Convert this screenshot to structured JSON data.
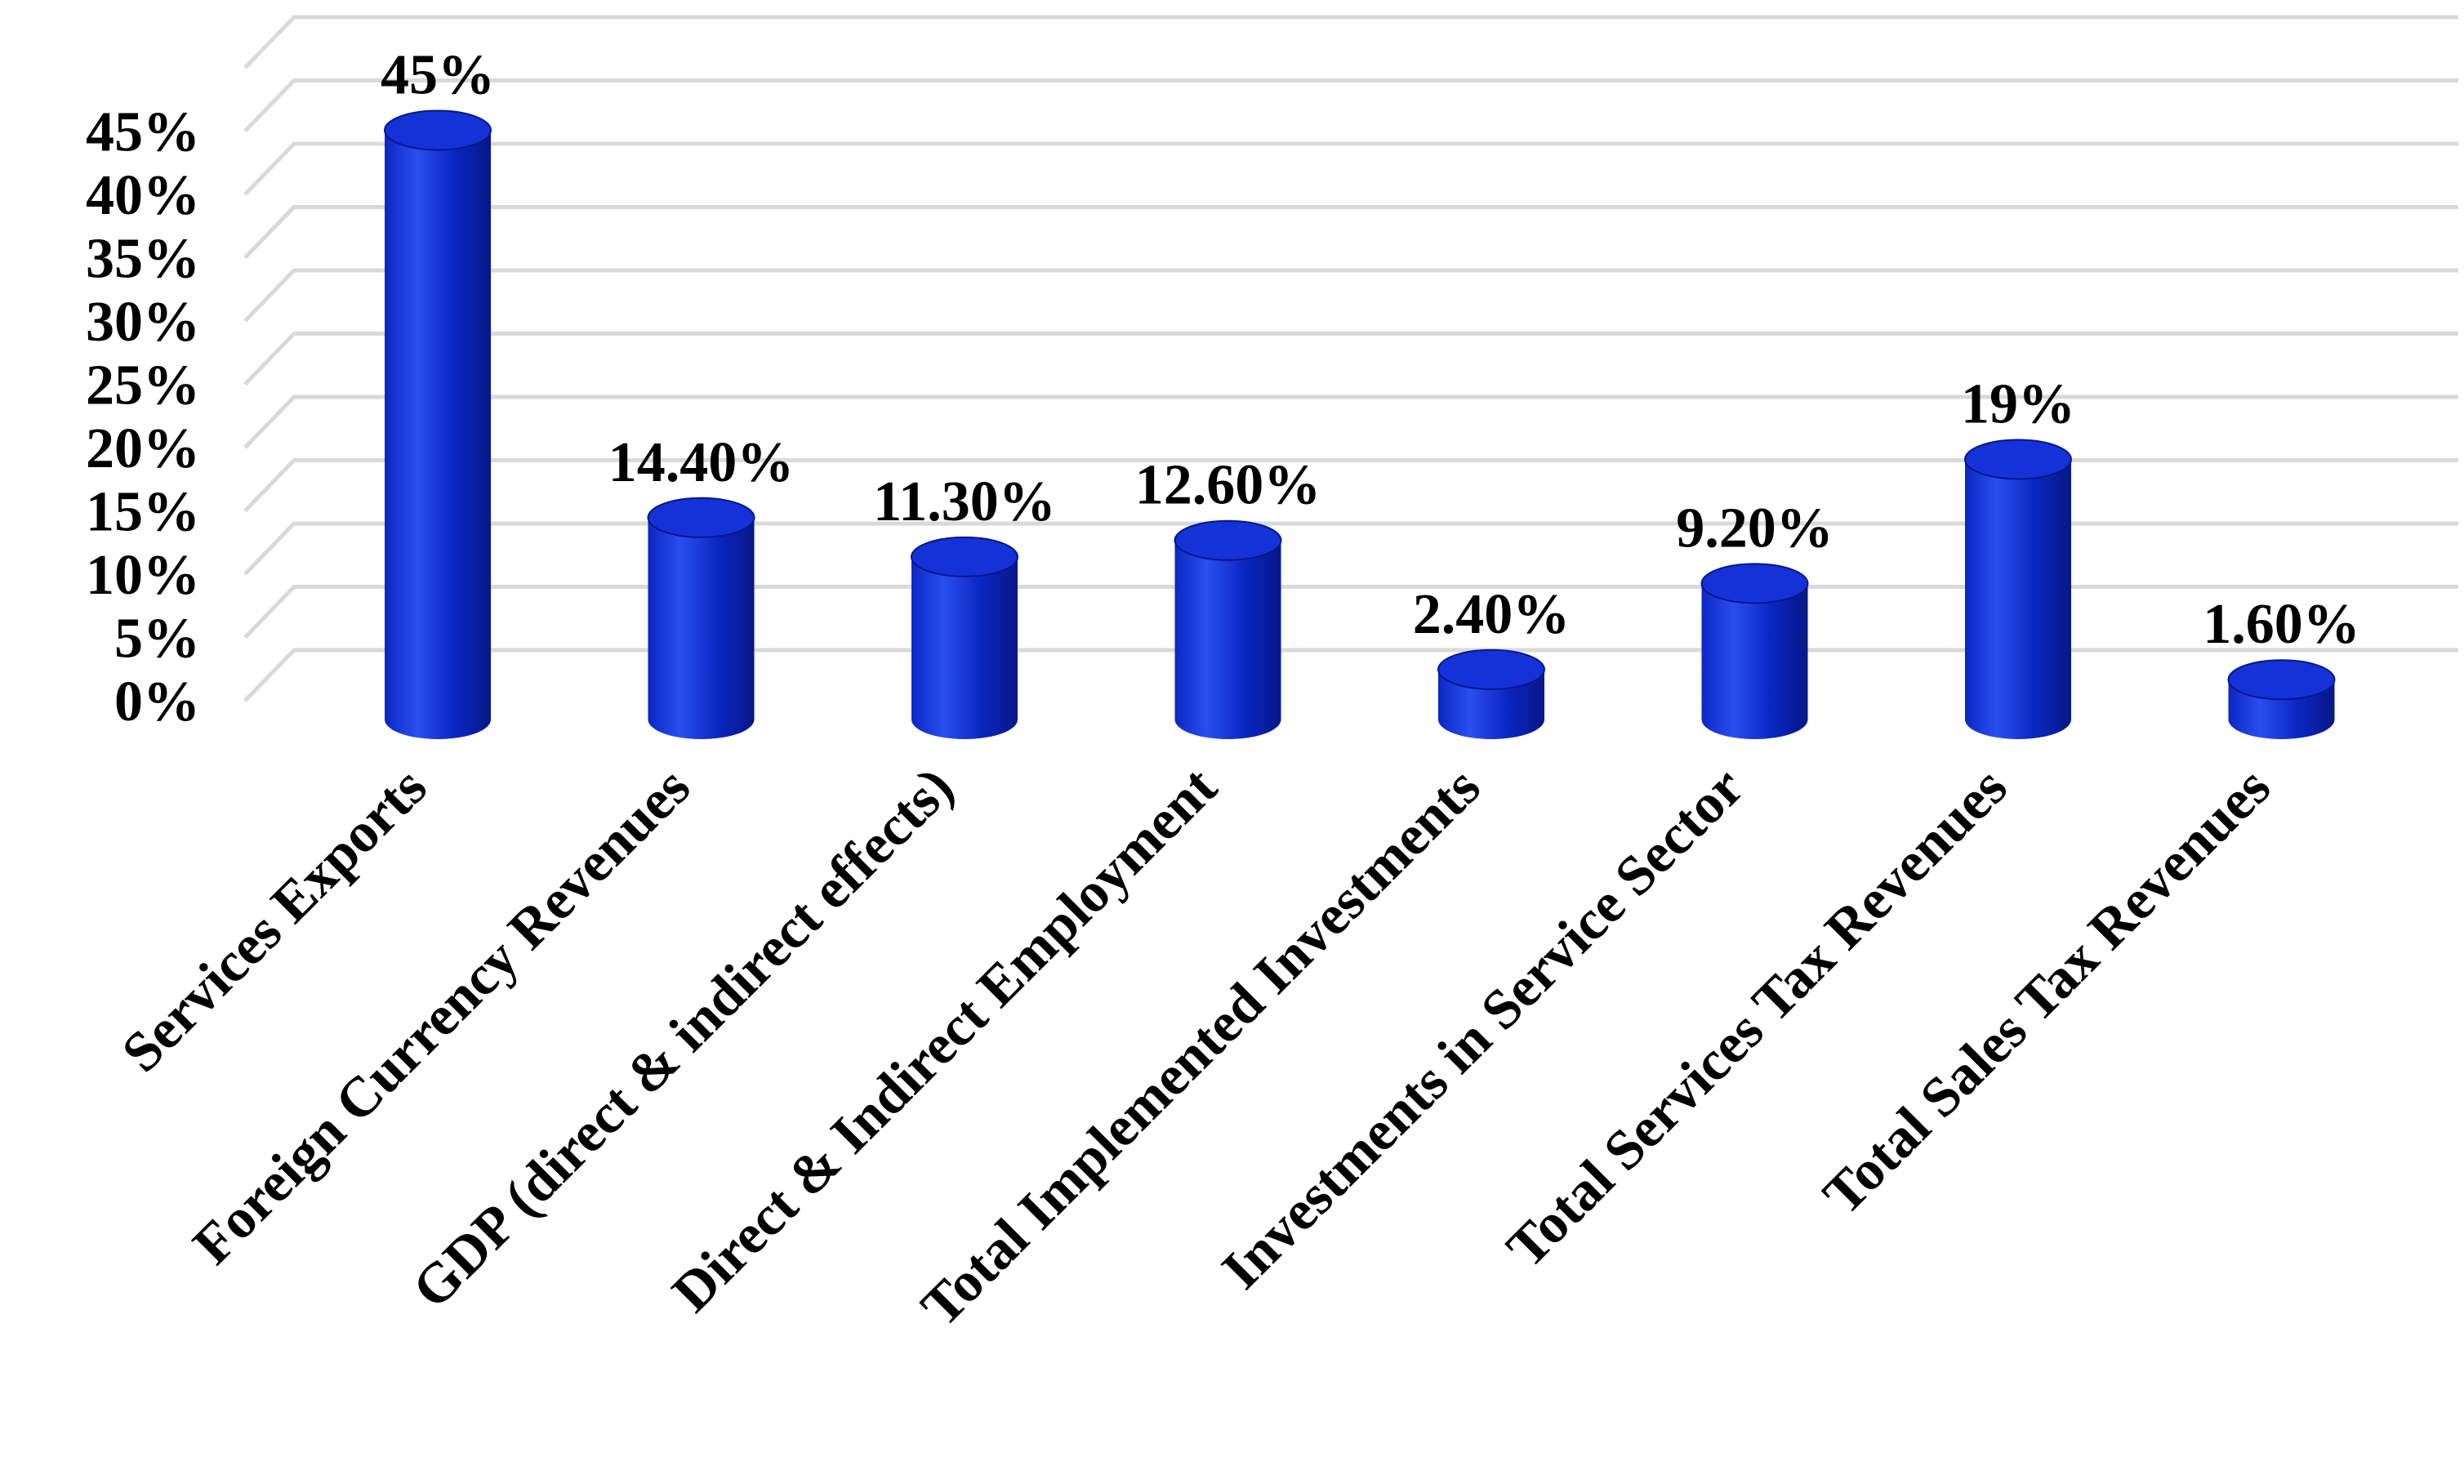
{
  "chart_data": {
    "type": "bar",
    "style": "3d-cylinder",
    "categories": [
      "Services Exports",
      "Foreign Currency Revenues",
      "GDP (direct & indirect effects)",
      "Direct & Indirect Employment",
      "Total Implemented Investments",
      "Investments in Service Sector",
      "Total Services Tax Revenues",
      "Total Sales Tax Revenues"
    ],
    "values": [
      45,
      14.4,
      11.3,
      12.6,
      2.4,
      9.2,
      19,
      1.6
    ],
    "data_labels": [
      "45%",
      "14.40%",
      "11.30%",
      "12.60%",
      "2.40%",
      "9.20%",
      "19%",
      "1.60%"
    ],
    "y_ticks": [
      0,
      5,
      10,
      15,
      20,
      25,
      30,
      35,
      40,
      45
    ],
    "y_tick_labels": [
      "0%",
      "5%",
      "10%",
      "15%",
      "20%",
      "25%",
      "30%",
      "35%",
      "40%",
      "45%"
    ],
    "ylim": [
      0,
      50
    ],
    "title": "",
    "xlabel": "",
    "ylabel": "",
    "grid": true,
    "legend": "none",
    "colors": {
      "bar_top": "#1432d8",
      "bar_light": "#2a4ef0",
      "bar_mid": "#0b27c2",
      "bar_dark": "#061787",
      "grid": "#d9d9d9",
      "text": "#000000"
    }
  }
}
